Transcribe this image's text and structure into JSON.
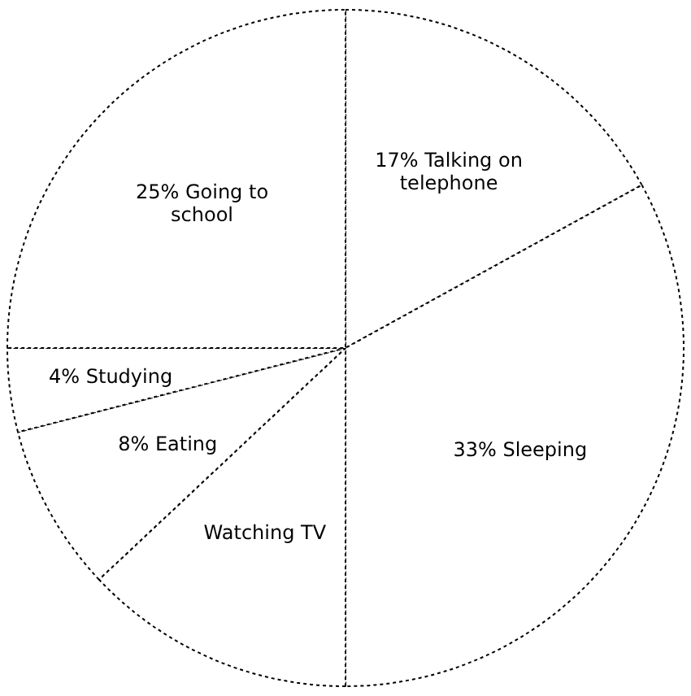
{
  "chart_data": {
    "type": "pie",
    "categories": [
      "Talking on telephone",
      "Sleeping",
      "Watching TV",
      "Eating",
      "Studying",
      "Going to school"
    ],
    "values": [
      17,
      33,
      13,
      8,
      4,
      25
    ],
    "value_labels": [
      "17%",
      "33%",
      null,
      "8%",
      "4%",
      "25%"
    ],
    "colors": [
      "#ffffff",
      "#ffffff",
      "#ffffff",
      "#ffffff",
      "#ffffff",
      "#ffffff"
    ],
    "legend": false
  }
}
